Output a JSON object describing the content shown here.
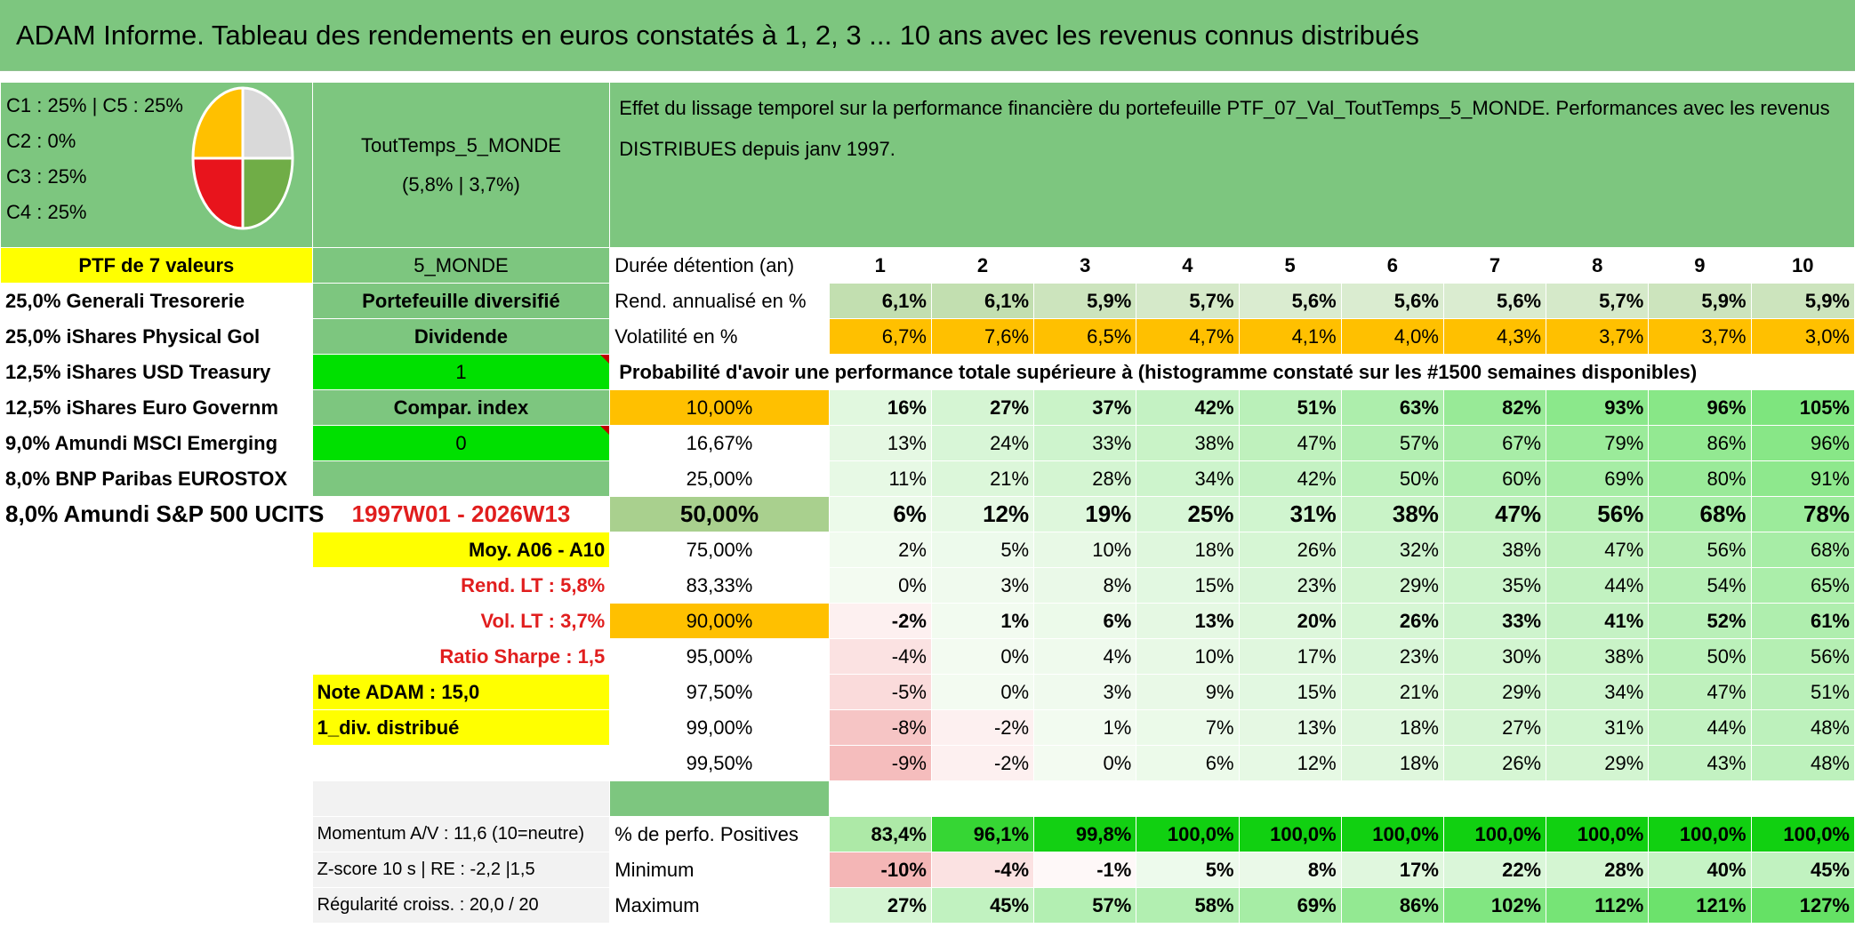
{
  "title": "ADAM Informe. Tableau des rendements en euros constatés à 1, 2, 3 ... 10 ans avec les revenus connus distribués",
  "allocation": [
    "C1 : 25% | C5 : 25%",
    "C2 : 0%",
    "C3 : 25%",
    "C4 : 25%"
  ],
  "pie_colors": {
    "C1": "#d9d9d9",
    "C3": "#70ad47",
    "C4": "#e8141c",
    "C5": "#ffc000"
  },
  "portfolio_name": "ToutTemps_5_MONDE",
  "portfolio_stats": "(5,8% | 3,7%)",
  "description": "Effet du lissage temporel sur la performance financière du portefeuille PTF_07_Val_ToutTemps_5_MONDE. Performances avec les revenus DISTRIBUES depuis janv 1997.",
  "ptf_label": "PTF de 7 valeurs",
  "zone_label": "5_MONDE",
  "duration_label": "Durée détention (an)",
  "years": [
    "1",
    "2",
    "3",
    "4",
    "5",
    "6",
    "7",
    "8",
    "9",
    "10"
  ],
  "holdings": [
    "25,0% Generali Tresorerie",
    "25,0% iShares Physical Gol",
    "12,5% iShares USD Treasury",
    "12,5% iShares Euro Governm",
    "9,0% Amundi MSCI Emerging",
    "8,0% BNP Paribas EUROSTOX",
    "8,0% Amundi S&P 500 UCITS"
  ],
  "info": {
    "diversified": "Portefeuille diversifié",
    "dividend": "Dividende",
    "dividend_value": "1",
    "compar": "Compar. index",
    "compar_value": "0",
    "period": "1997W01 - 2026W13",
    "avg": "Moy. A06 - A10",
    "rend_lt": "Rend. LT : 5,8%",
    "vol_lt": "Vol. LT : 3,7%",
    "sharpe": "Ratio Sharpe : 1,5",
    "note": "Note ADAM : 15,0",
    "div": "1_div. distribué",
    "momentum": "Momentum A/V : 11,6 (10=neutre)",
    "zscore": "Z-score 10 s | RE : -2,2 |1,5",
    "regularity": "Régularité croiss. : 20,0 / 20"
  },
  "rend": {
    "label": "Rend. annualisé en %",
    "values": [
      "6,1%",
      "6,1%",
      "5,9%",
      "5,7%",
      "5,6%",
      "5,6%",
      "5,6%",
      "5,7%",
      "5,9%",
      "5,9%"
    ]
  },
  "vol": {
    "label": "Volatilité en %",
    "values": [
      "6,7%",
      "7,6%",
      "6,5%",
      "4,7%",
      "4,1%",
      "4,0%",
      "4,3%",
      "3,7%",
      "3,7%",
      "3,0%"
    ]
  },
  "prob_title": "Probabilité d'avoir une performance totale supérieure à (histogramme constaté sur les #1500 semaines disponibles)",
  "prob_rows": [
    {
      "pct": "10,00%",
      "values": [
        "16%",
        "27%",
        "37%",
        "42%",
        "51%",
        "63%",
        "82%",
        "93%",
        "96%",
        "105%"
      ]
    },
    {
      "pct": "16,67%",
      "values": [
        "13%",
        "24%",
        "33%",
        "38%",
        "47%",
        "57%",
        "67%",
        "79%",
        "86%",
        "96%"
      ]
    },
    {
      "pct": "25,00%",
      "values": [
        "11%",
        "21%",
        "28%",
        "34%",
        "42%",
        "50%",
        "60%",
        "69%",
        "80%",
        "91%"
      ]
    },
    {
      "pct": "50,00%",
      "values": [
        "6%",
        "12%",
        "19%",
        "25%",
        "31%",
        "38%",
        "47%",
        "56%",
        "68%",
        "78%"
      ]
    },
    {
      "pct": "75,00%",
      "values": [
        "2%",
        "5%",
        "10%",
        "18%",
        "26%",
        "32%",
        "38%",
        "47%",
        "56%",
        "68%"
      ]
    },
    {
      "pct": "83,33%",
      "values": [
        "0%",
        "3%",
        "8%",
        "15%",
        "23%",
        "29%",
        "35%",
        "44%",
        "54%",
        "65%"
      ]
    },
    {
      "pct": "90,00%",
      "values": [
        "-2%",
        "1%",
        "6%",
        "13%",
        "20%",
        "26%",
        "33%",
        "41%",
        "52%",
        "61%"
      ]
    },
    {
      "pct": "95,00%",
      "values": [
        "-4%",
        "0%",
        "4%",
        "10%",
        "17%",
        "23%",
        "30%",
        "38%",
        "50%",
        "56%"
      ]
    },
    {
      "pct": "97,50%",
      "values": [
        "-5%",
        "0%",
        "3%",
        "9%",
        "15%",
        "21%",
        "29%",
        "34%",
        "47%",
        "51%"
      ]
    },
    {
      "pct": "99,00%",
      "values": [
        "-8%",
        "-2%",
        "1%",
        "7%",
        "13%",
        "18%",
        "27%",
        "31%",
        "44%",
        "48%"
      ]
    },
    {
      "pct": "99,50%",
      "values": [
        "-9%",
        "-2%",
        "0%",
        "6%",
        "12%",
        "18%",
        "26%",
        "29%",
        "43%",
        "48%"
      ]
    }
  ],
  "positives": {
    "label": "% de perfo. Positives",
    "values": [
      "83,4%",
      "96,1%",
      "99,8%",
      "100,0%",
      "100,0%",
      "100,0%",
      "100,0%",
      "100,0%",
      "100,0%",
      "100,0%"
    ]
  },
  "minimum": {
    "label": "Minimum",
    "values": [
      "-10%",
      "-4%",
      "-1%",
      "5%",
      "8%",
      "17%",
      "22%",
      "28%",
      "40%",
      "45%"
    ]
  },
  "maximum": {
    "label": "Maximum",
    "values": [
      "27%",
      "45%",
      "57%",
      "58%",
      "69%",
      "86%",
      "102%",
      "112%",
      "121%",
      "127%"
    ]
  }
}
